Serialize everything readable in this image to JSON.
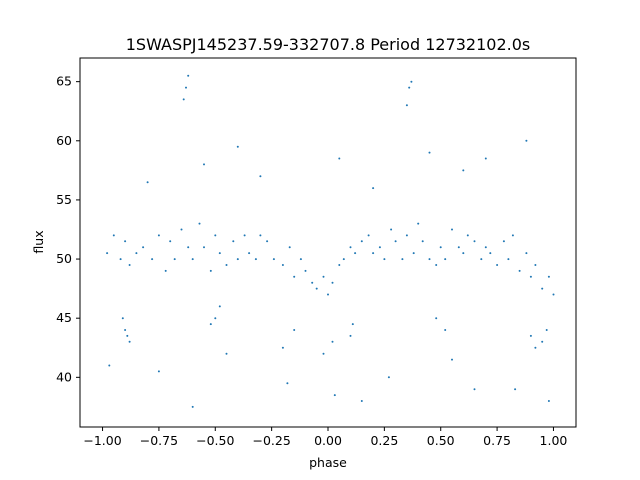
{
  "chart_data": {
    "type": "scatter",
    "title": "1SWASPJ145237.59-332707.8 Period 12732102.0s",
    "xlabel": "phase",
    "ylabel": "flux",
    "xlim": [
      -1.1,
      1.1
    ],
    "ylim": [
      35.8,
      67.0
    ],
    "xticks": [
      -1.0,
      -0.75,
      -0.5,
      -0.25,
      0.0,
      0.25,
      0.5,
      0.75,
      1.0
    ],
    "xtick_labels": [
      "−1.00",
      "−0.75",
      "−0.50",
      "−0.25",
      "0.00",
      "0.25",
      "0.50",
      "0.75",
      "1.00"
    ],
    "yticks": [
      40,
      45,
      50,
      55,
      60,
      65
    ],
    "ytick_labels": [
      "40",
      "45",
      "50",
      "55",
      "60",
      "65"
    ],
    "grid": false,
    "legend": "none",
    "marker_color": "#1f77b4",
    "series": [
      {
        "x": [
          -0.98,
          -0.95,
          -0.92,
          -0.9,
          -0.88,
          -0.85,
          -0.82,
          -0.78,
          -0.75,
          -0.72,
          -0.7,
          -0.68,
          -0.65,
          -0.62,
          -0.6,
          -0.57,
          -0.55,
          -0.52,
          -0.5,
          -0.48,
          -0.45,
          -0.42,
          -0.4,
          -0.37,
          -0.35,
          -0.32,
          -0.3,
          -0.27,
          -0.24,
          -0.2,
          -0.17,
          -0.15,
          -0.12,
          -0.1,
          -0.07,
          -0.05,
          -0.02,
          0.0,
          0.02,
          0.05,
          0.07,
          0.1,
          0.12,
          0.15,
          0.18,
          0.2,
          0.23,
          0.25,
          0.28,
          0.3,
          0.33,
          0.35,
          0.38,
          0.4,
          0.42,
          0.45,
          0.48,
          0.5,
          0.52,
          0.55,
          0.58,
          0.6,
          0.62,
          0.65,
          0.68,
          0.7,
          0.72,
          0.75,
          0.78,
          0.8,
          0.82,
          0.85,
          0.88,
          0.9,
          0.92,
          0.95,
          0.98,
          1.0,
          -0.9,
          -0.89,
          -0.88,
          -0.91,
          -0.52,
          -0.5,
          -0.48,
          -0.2,
          -0.15,
          -0.02,
          0.02,
          0.1,
          0.11,
          0.48,
          0.52,
          0.9,
          0.92,
          0.95,
          0.97,
          -0.64,
          -0.63,
          -0.62,
          0.35,
          0.36,
          0.37,
          -0.55,
          -0.3,
          0.05,
          0.45,
          0.6,
          0.88,
          -0.8,
          -0.4,
          0.2,
          0.7,
          -0.97,
          -0.75,
          -0.45,
          -0.18,
          0.03,
          0.27,
          0.55,
          0.83,
          0.98,
          -0.6,
          0.15,
          0.65
        ],
        "y": [
          50.5,
          52.0,
          50.0,
          51.5,
          49.5,
          50.5,
          51.0,
          50.0,
          52.0,
          49.0,
          51.5,
          50.0,
          52.5,
          51.0,
          50.0,
          53.0,
          51.0,
          49.0,
          52.0,
          50.5,
          49.5,
          51.5,
          50.0,
          52.0,
          50.5,
          50.0,
          52.0,
          51.5,
          50.0,
          49.5,
          51.0,
          48.5,
          50.0,
          49.0,
          48.0,
          47.5,
          48.5,
          47.0,
          48.0,
          49.5,
          50.0,
          51.0,
          50.5,
          51.5,
          52.0,
          50.5,
          51.0,
          50.0,
          52.5,
          51.5,
          50.0,
          52.0,
          50.5,
          53.0,
          51.5,
          50.0,
          49.5,
          51.0,
          50.0,
          52.5,
          51.0,
          50.5,
          52.0,
          51.5,
          50.0,
          51.0,
          50.5,
          49.5,
          51.5,
          50.0,
          52.0,
          49.0,
          50.5,
          48.5,
          49.5,
          47.5,
          48.5,
          47.0,
          44.0,
          43.5,
          43.0,
          45.0,
          44.5,
          45.0,
          46.0,
          42.5,
          44.0,
          42.0,
          43.0,
          43.5,
          44.5,
          45.0,
          44.0,
          43.5,
          42.5,
          43.0,
          44.0,
          63.5,
          64.5,
          65.5,
          63.0,
          64.5,
          65.0,
          58.0,
          57.0,
          58.5,
          59.0,
          57.5,
          60.0,
          56.5,
          59.5,
          56.0,
          58.5,
          41.0,
          40.5,
          42.0,
          39.5,
          38.5,
          40.0,
          41.5,
          39.0,
          38.0,
          37.5,
          38.0,
          39.0
        ]
      }
    ]
  }
}
